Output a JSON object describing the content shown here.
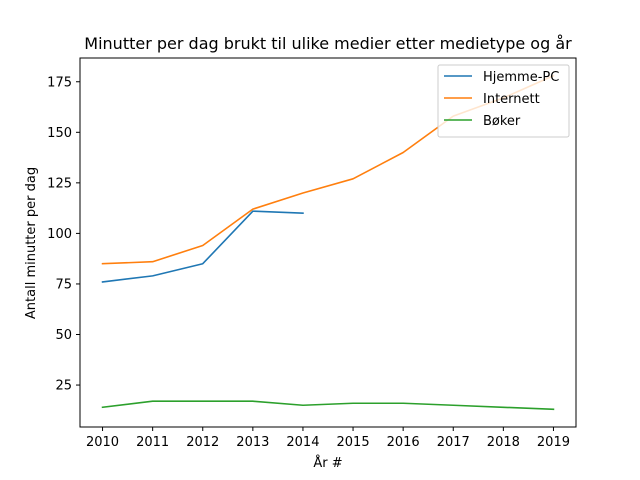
{
  "chart_data": {
    "type": "line",
    "title": "Minutter per dag brukt til ulike medier etter medietype og år",
    "xlabel": "År #",
    "ylabel": "Antall minutter per dag",
    "x": [
      2010,
      2011,
      2012,
      2013,
      2014,
      2015,
      2016,
      2017,
      2018,
      2019
    ],
    "xlim": [
      2009.55,
      2019.45
    ],
    "ylim": [
      4.25,
      186.75
    ],
    "xticks": [
      2010,
      2011,
      2012,
      2013,
      2014,
      2015,
      2016,
      2017,
      2018,
      2019
    ],
    "yticks": [
      25,
      50,
      75,
      100,
      125,
      150,
      175
    ],
    "grid": false,
    "legend": "top-right",
    "series": [
      {
        "name": "Hjemme-PC",
        "color": "#1f77b4",
        "values": [
          76,
          79,
          85,
          111,
          110,
          null,
          null,
          null,
          null,
          null
        ]
      },
      {
        "name": "Internett",
        "color": "#ff7f0e",
        "values": [
          85,
          86,
          94,
          112,
          120,
          127,
          140,
          158,
          167,
          178
        ]
      },
      {
        "name": "Bøker",
        "color": "#2ca02c",
        "values": [
          14,
          17,
          17,
          17,
          15,
          16,
          16,
          15,
          14,
          13
        ]
      }
    ]
  }
}
